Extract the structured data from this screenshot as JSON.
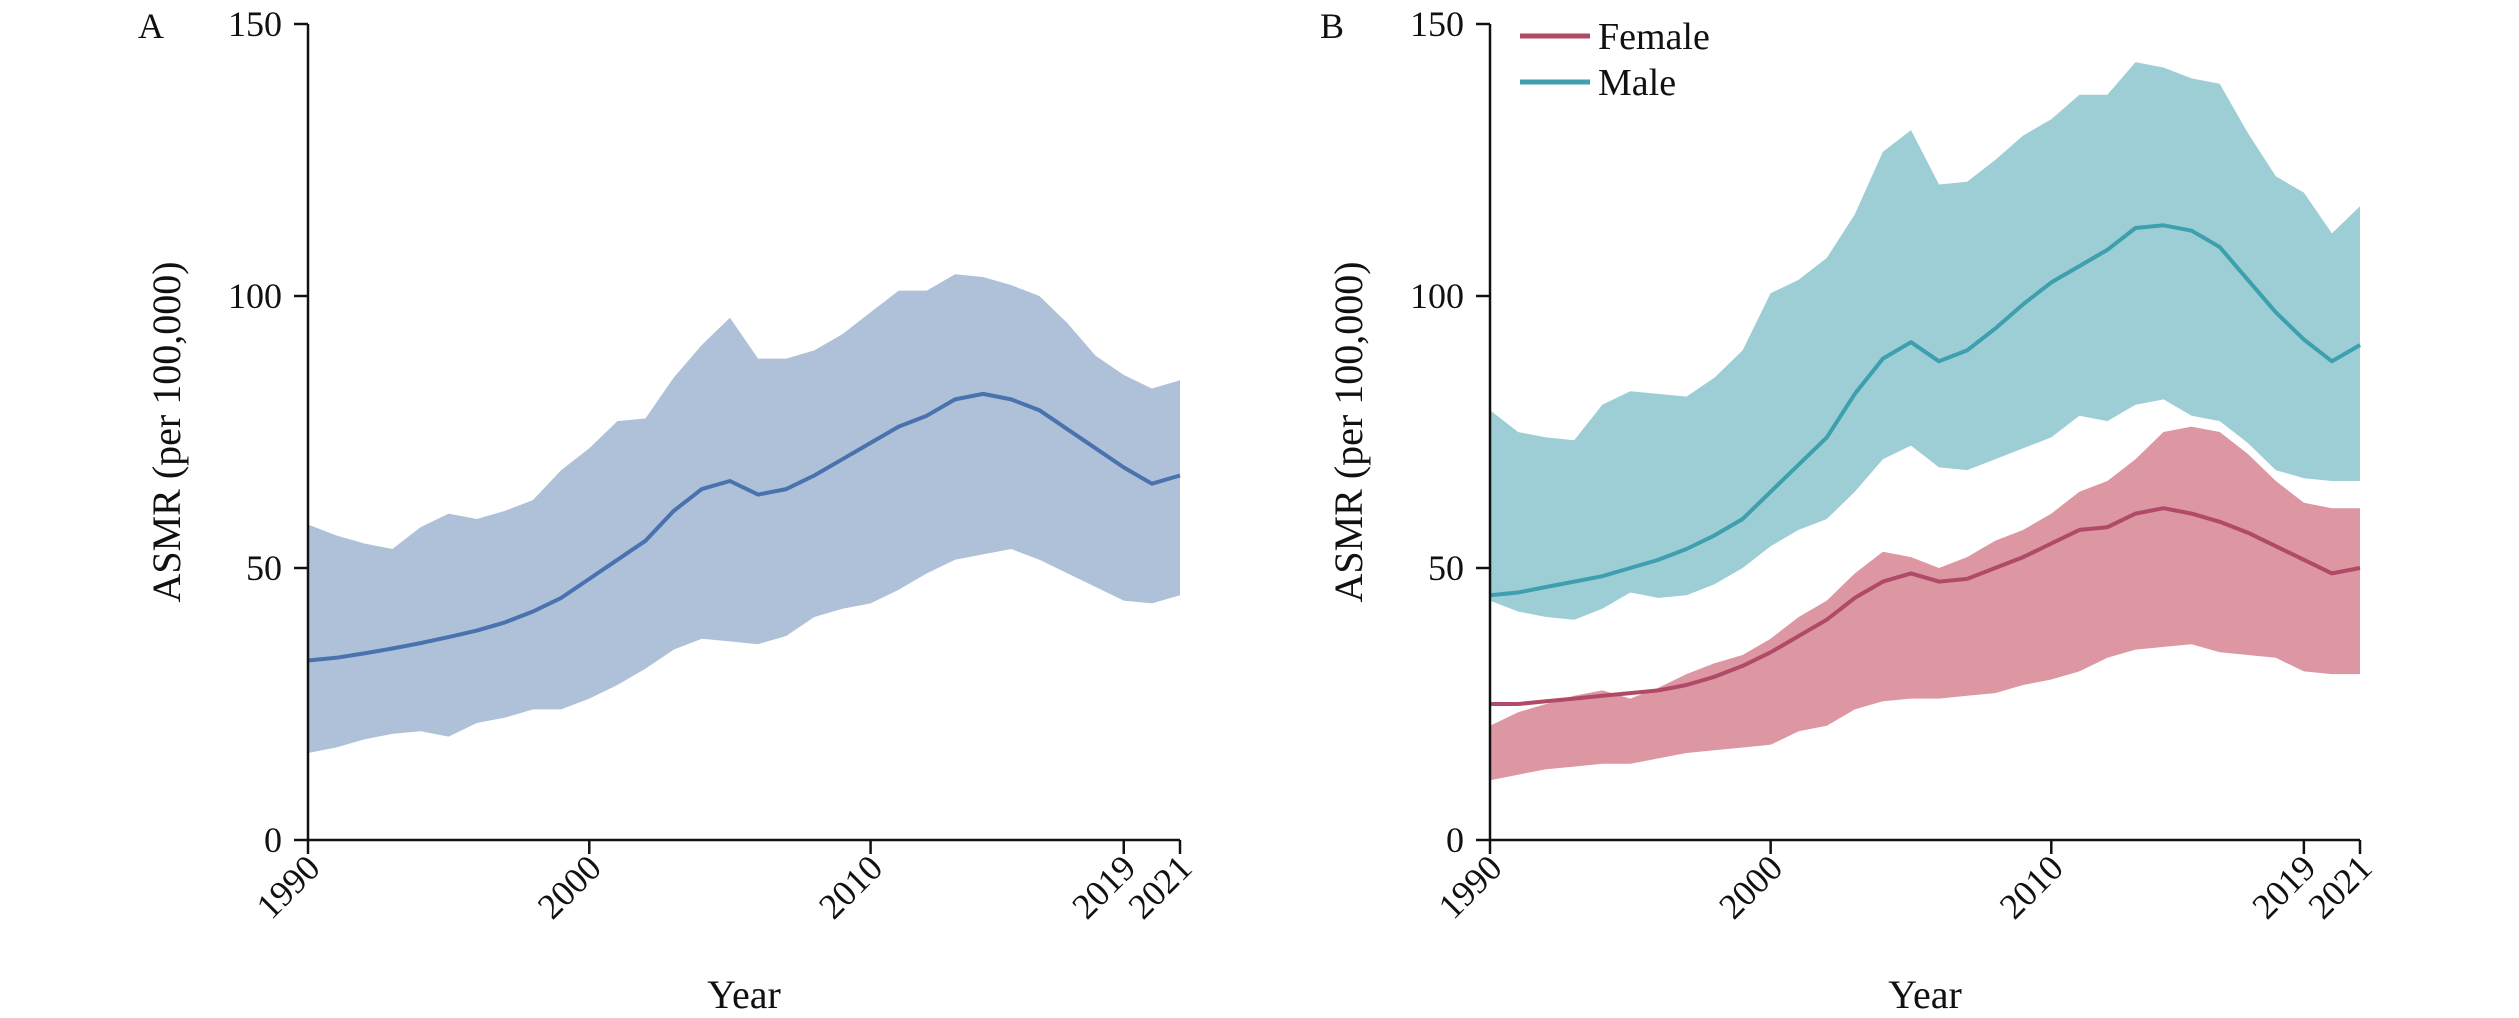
{
  "chart_data": [
    {
      "type": "area",
      "panel_label": "A",
      "xlabel": "Year",
      "ylabel": "ASMR (per 100,000)",
      "xlim": [
        1990,
        2021
      ],
      "ylim": [
        0,
        150
      ],
      "x_ticks": [
        1990,
        2000,
        2010,
        2019,
        2021
      ],
      "y_ticks": [
        0,
        50,
        100,
        150
      ],
      "legend": null,
      "series": [
        {
          "color": "#4a72ae",
          "band_color": "#9cb3d0",
          "x": [
            1990,
            1991,
            1992,
            1993,
            1994,
            1995,
            1996,
            1997,
            1998,
            1999,
            2000,
            2001,
            2002,
            2003,
            2004,
            2005,
            2006,
            2007,
            2008,
            2009,
            2010,
            2011,
            2012,
            2013,
            2014,
            2015,
            2016,
            2017,
            2018,
            2019,
            2020,
            2021
          ],
          "values": [
            33,
            33.5,
            34.3,
            35.2,
            36.2,
            37.3,
            38.5,
            40,
            42,
            44.5,
            48,
            51.5,
            55,
            60.5,
            64.5,
            66,
            63.5,
            64.5,
            67,
            70,
            73,
            76,
            78,
            81,
            82,
            81,
            79,
            75.5,
            72,
            68.5,
            65.5,
            67
          ],
          "lower": [
            16,
            17,
            18.5,
            19.5,
            20,
            19,
            21.5,
            22.5,
            24,
            24,
            26,
            28.5,
            31.5,
            35,
            37,
            36.5,
            36,
            37.5,
            41,
            42.5,
            43.5,
            46,
            49,
            51.5,
            52.5,
            53.5,
            51.5,
            49,
            46.5,
            44,
            43.5,
            45
          ],
          "upper": [
            58,
            56,
            54.5,
            53.5,
            57.5,
            60,
            59,
            60.5,
            62.5,
            68,
            72,
            77,
            77.5,
            85,
            91,
            96,
            88.5,
            88.5,
            90,
            93,
            97,
            101,
            101,
            104,
            103.5,
            102,
            100,
            95,
            89,
            85.5,
            83,
            84.5
          ]
        }
      ]
    },
    {
      "type": "area",
      "panel_label": "B",
      "xlabel": "Year",
      "ylabel": "ASMR (per 100,000)",
      "xlim": [
        1990,
        2021
      ],
      "ylim": [
        0,
        150
      ],
      "x_ticks": [
        1990,
        2000,
        2010,
        2019,
        2021
      ],
      "y_ticks": [
        0,
        50,
        100,
        150
      ],
      "legend": "top-left",
      "series": [
        {
          "name": "Female",
          "color": "#b04a67",
          "band_color": "#d4808f",
          "x": [
            1990,
            1991,
            1992,
            1993,
            1994,
            1995,
            1996,
            1997,
            1998,
            1999,
            2000,
            2001,
            2002,
            2003,
            2004,
            2005,
            2006,
            2007,
            2008,
            2009,
            2010,
            2011,
            2012,
            2013,
            2014,
            2015,
            2016,
            2017,
            2018,
            2019,
            2020,
            2021
          ],
          "values": [
            25,
            25,
            25.5,
            26,
            26.5,
            27,
            27.5,
            28.5,
            30,
            32,
            34.5,
            37.5,
            40.5,
            44.5,
            47.5,
            49,
            47.5,
            48,
            50,
            52,
            54.5,
            57,
            57.5,
            60,
            61,
            60,
            58.5,
            56.5,
            54,
            51.5,
            49,
            50
          ],
          "lower": [
            11,
            12,
            13,
            13.5,
            14,
            14,
            15,
            16,
            16.5,
            17,
            17.5,
            20,
            21,
            24,
            25.5,
            26,
            26,
            26.5,
            27,
            28.5,
            29.5,
            31,
            33.5,
            35,
            35.5,
            36,
            34.5,
            34,
            33.5,
            31,
            30.5,
            30.5
          ],
          "upper": [
            21,
            23.5,
            25,
            26.5,
            27.5,
            26,
            28,
            30.5,
            32.5,
            34,
            37,
            41,
            44,
            49,
            53,
            52,
            50,
            52,
            55,
            57,
            60,
            64,
            66,
            70,
            75,
            76,
            75,
            71,
            66,
            62,
            61,
            61
          ]
        },
        {
          "name": "Male",
          "color": "#3e9fae",
          "band_color": "#88c3cc",
          "x": [
            1990,
            1991,
            1992,
            1993,
            1994,
            1995,
            1996,
            1997,
            1998,
            1999,
            2000,
            2001,
            2002,
            2003,
            2004,
            2005,
            2006,
            2007,
            2008,
            2009,
            2010,
            2011,
            2012,
            2013,
            2014,
            2015,
            2016,
            2017,
            2018,
            2019,
            2020,
            2021
          ],
          "values": [
            45,
            45.5,
            46.5,
            47.5,
            48.5,
            50,
            51.5,
            53.5,
            56,
            59,
            64,
            69,
            74,
            82,
            88.5,
            91.5,
            88,
            90,
            94,
            98.5,
            102.5,
            105.5,
            108.5,
            112.5,
            113,
            112,
            109,
            103,
            97,
            92,
            88,
            91
          ],
          "lower": [
            44,
            42,
            41,
            40.5,
            42.5,
            45.5,
            44.5,
            45,
            47,
            50,
            54,
            57,
            59,
            64,
            70,
            72.5,
            68.5,
            68,
            70,
            72,
            74,
            78,
            77,
            80,
            81,
            78,
            77,
            73,
            68,
            66.5,
            66,
            66
          ],
          "upper": [
            79,
            75,
            74,
            73.5,
            80,
            82.5,
            82,
            81.5,
            85,
            90,
            100.5,
            103,
            107,
            115,
            126.5,
            130.5,
            120.5,
            121,
            125,
            129.5,
            132.5,
            137,
            137,
            143,
            142,
            140,
            139,
            130,
            122,
            119,
            111.5,
            116.5
          ]
        }
      ]
    }
  ]
}
